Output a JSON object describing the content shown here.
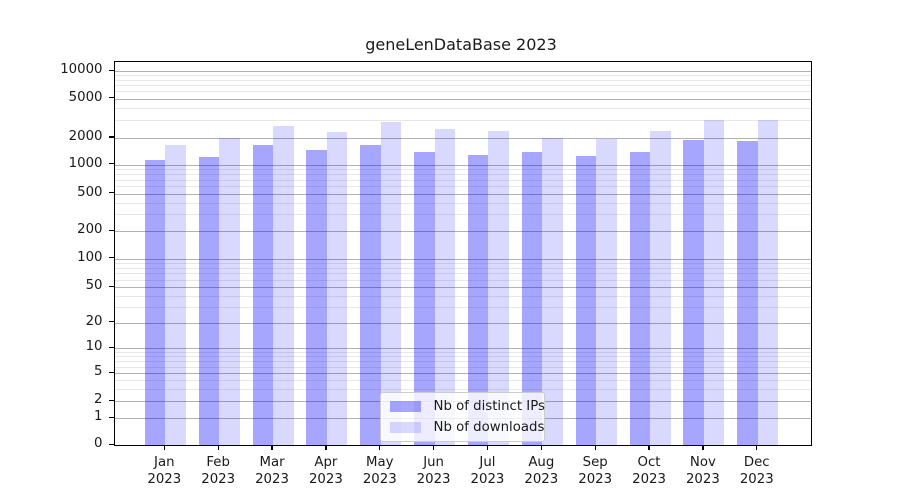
{
  "title": "geneLenDataBase 2023",
  "chart_data": {
    "type": "bar",
    "title": "geneLenDataBase 2023",
    "xlabel": "",
    "ylabel": "",
    "yscale": "symlog",
    "grid": true,
    "legend_position": "lower center-right inside plot",
    "year": "2023",
    "categories": [
      "Jan",
      "Feb",
      "Mar",
      "Apr",
      "May",
      "Jun",
      "Jul",
      "Aug",
      "Sep",
      "Oct",
      "Nov",
      "Dec"
    ],
    "y_ticks": [
      0,
      1,
      2,
      5,
      10,
      20,
      50,
      100,
      200,
      500,
      1000,
      2000,
      5000,
      10000
    ],
    "ylim": [
      0,
      14000
    ],
    "series": [
      {
        "name": "Nb of distinct IPs",
        "color": "#a6a6ff",
        "rgba": "rgba(0,0,255,0.35)",
        "values": [
          1140,
          1220,
          1650,
          1460,
          1650,
          1400,
          1290,
          1370,
          1240,
          1380,
          1870,
          1860
        ]
      },
      {
        "name": "Nb of downloads",
        "color": "#d9d9ff",
        "rgba": "rgba(0,0,255,0.15)",
        "values": [
          1670,
          1990,
          2660,
          2310,
          2900,
          2470,
          2330,
          1980,
          1960,
          2350,
          3010,
          3030
        ]
      }
    ]
  },
  "legend": {
    "items": [
      {
        "label": "Nb of distinct IPs"
      },
      {
        "label": "Nb of downloads"
      }
    ]
  },
  "colors": {
    "bar_dark": "rgba(0,0,255,0.35)",
    "bar_light": "rgba(0,0,255,0.15)",
    "grid_major": "rgba(0,0,0,0.30)",
    "grid_minor": "rgba(0,0,0,0.09)",
    "text": "#1a1a1a",
    "spine": "#000000"
  }
}
